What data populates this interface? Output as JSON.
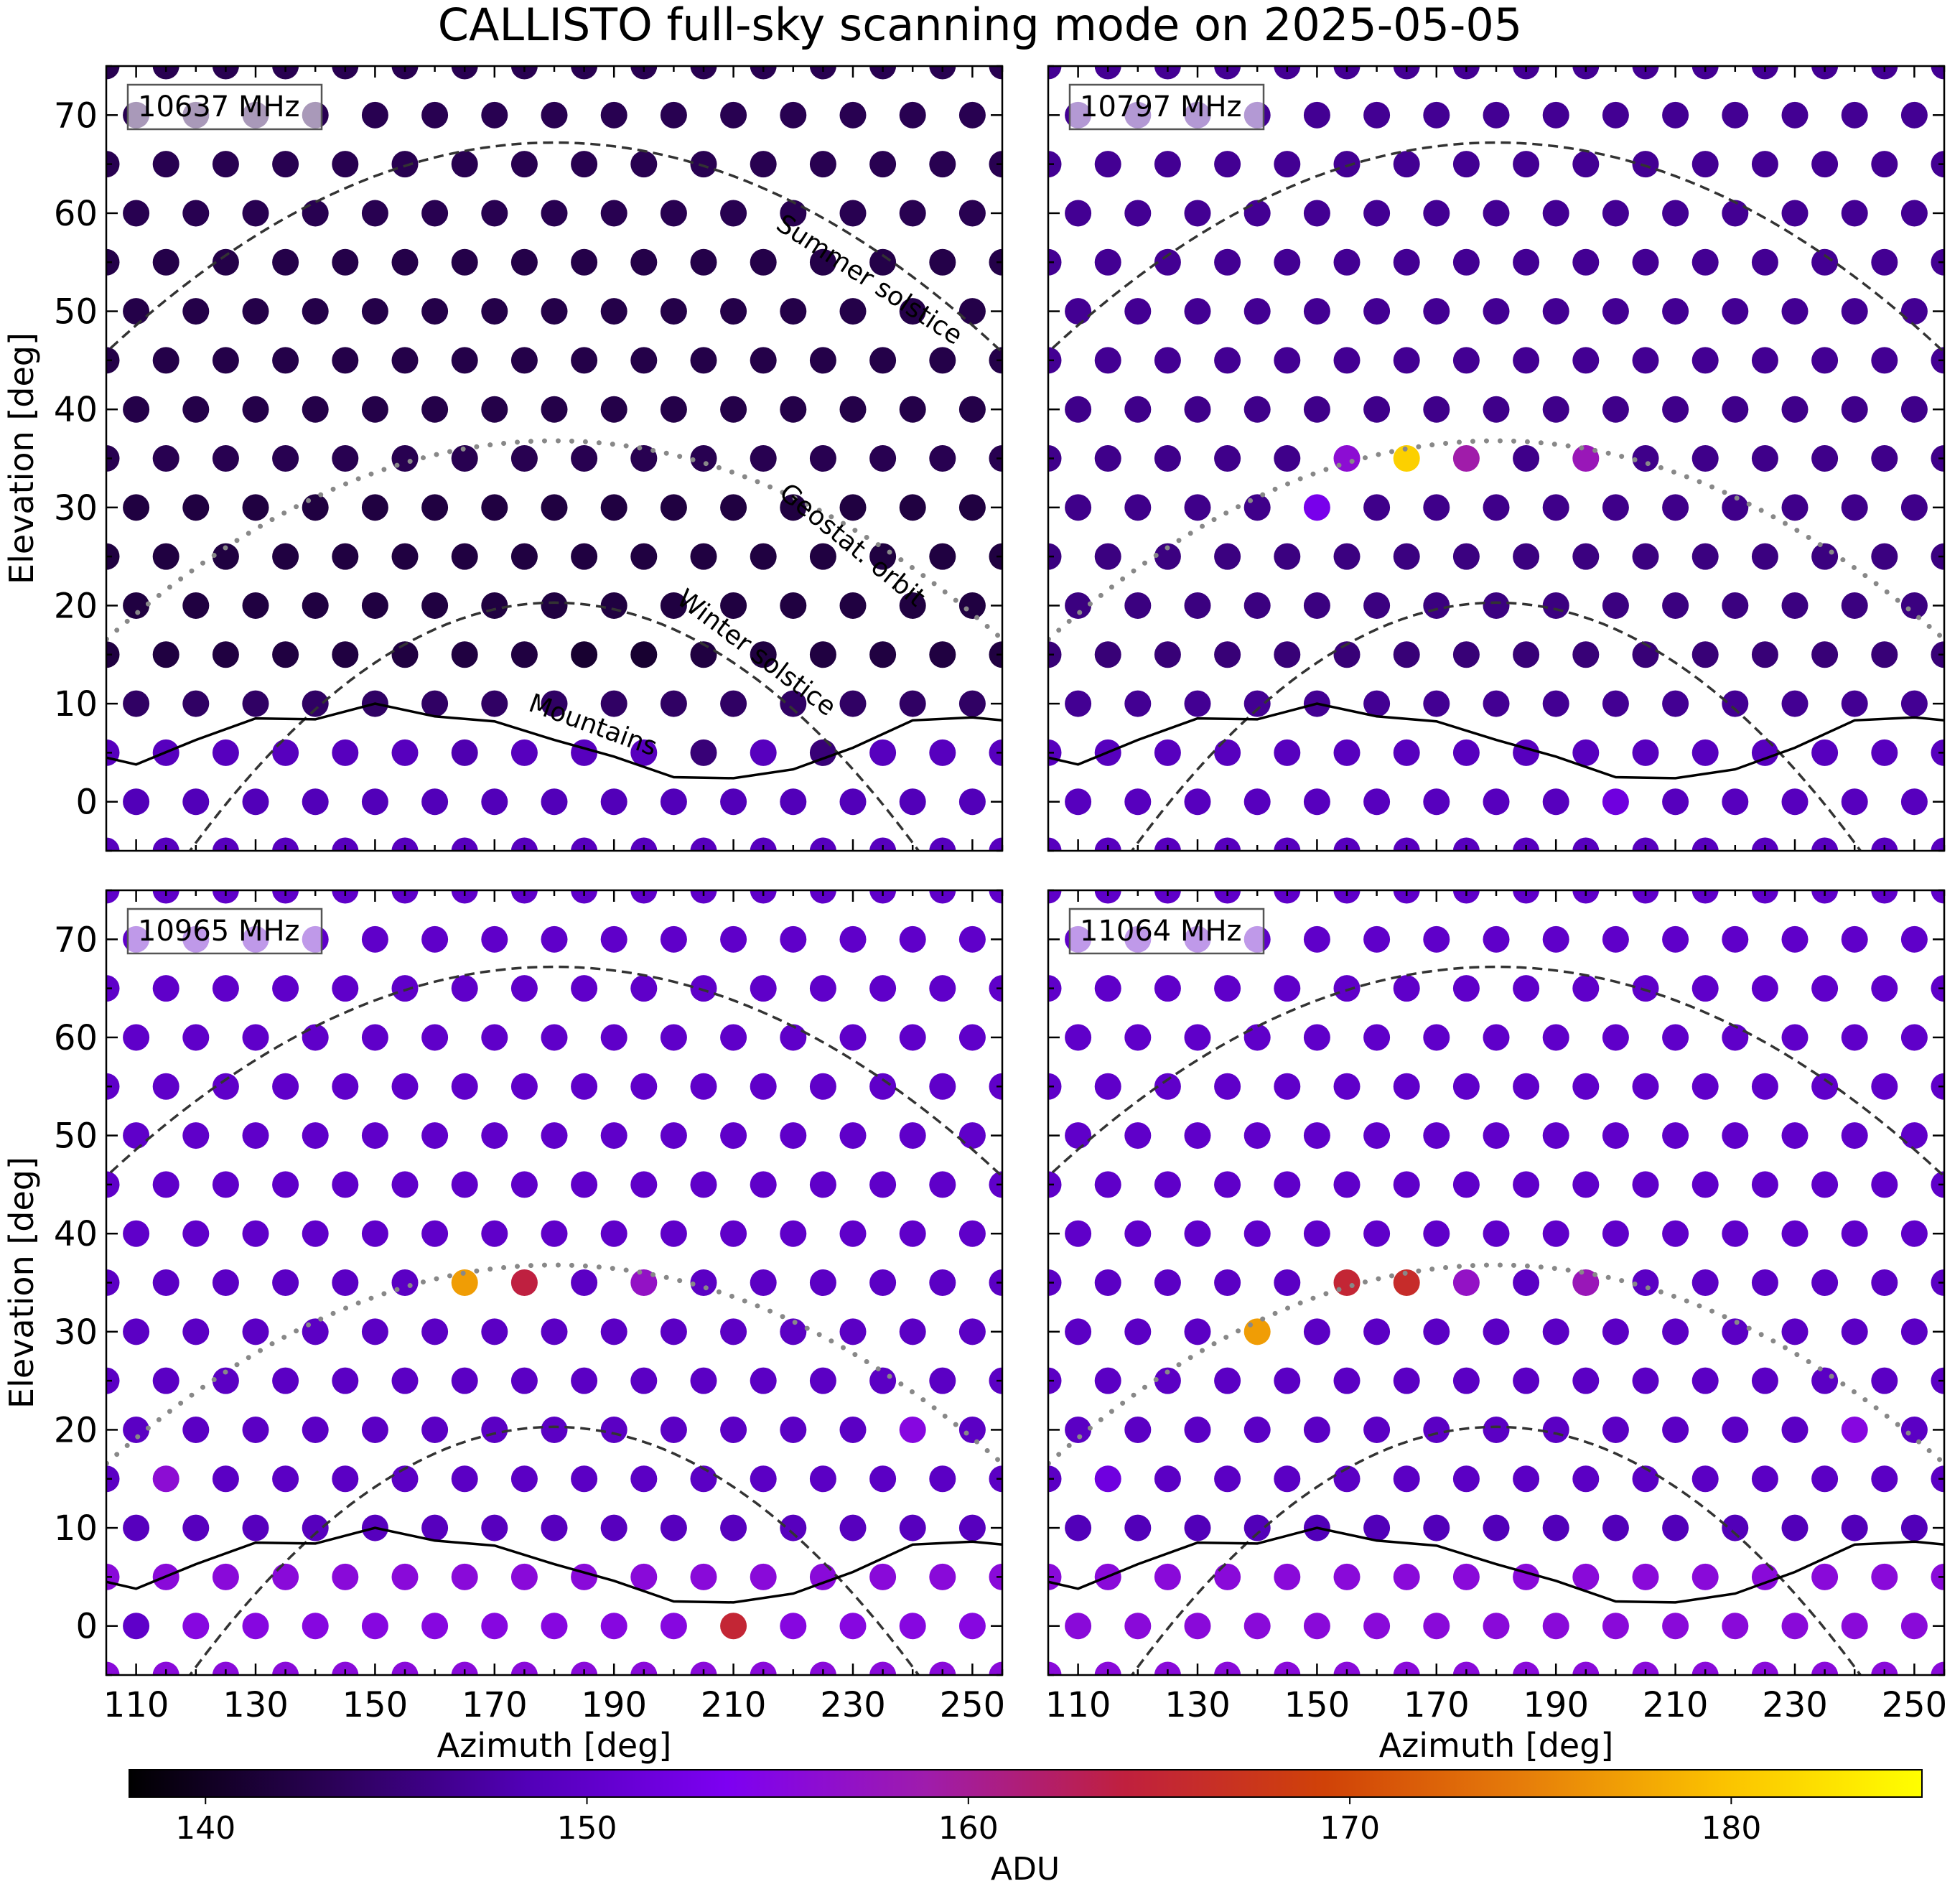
{
  "title": "CALLISTO full-sky scanning mode on 2025-05-05",
  "colorbar": {
    "label": "ADU",
    "ticks": [
      140,
      150,
      160,
      170,
      180
    ],
    "range": [
      138,
      185
    ],
    "colormap": "gnuplot",
    "stops": [
      "#000000",
      "#2a0155",
      "#5200b8",
      "#7d00f2",
      "#9f1cac",
      "#c0203e",
      "#d04208",
      "#e67d0a",
      "#fbc200",
      "#ffff00"
    ]
  },
  "chart_data": [
    {
      "type": "scatter",
      "label": "10637 MHz",
      "xlabel": "",
      "ylabel": "Elevation [deg]",
      "xlim": [
        105,
        255
      ],
      "ylim": [
        -5,
        75
      ],
      "xticks": [
        110,
        130,
        150,
        170,
        190,
        210,
        230,
        250
      ],
      "yticks": [
        0,
        10,
        20,
        30,
        40,
        50,
        60,
        70
      ],
      "base_by_row": {
        "-5": 149,
        "0": 148.5,
        "5": 149,
        "10": 144,
        "15": 142,
        "20": 142,
        "25": 142,
        "30": 142,
        "35": 143,
        "40": 142.5,
        "45": 142.5,
        "50": 142.5,
        "55": 142.5,
        "60": 143,
        "65": 143,
        "70": 143,
        "75": 143
      },
      "points": [
        {
          "az": 205,
          "el": 5,
          "adu": 145
        },
        {
          "az": 225,
          "el": 5,
          "adu": 145
        },
        {
          "az": 185,
          "el": 15,
          "adu": 141
        },
        {
          "az": 195,
          "el": 15,
          "adu": 141
        },
        {
          "az": 165,
          "el": 5,
          "adu": 148
        }
      ],
      "annotations": [
        "Summer solstice",
        "Geostat. orbit",
        "Winter solstice",
        "Mountains"
      ]
    },
    {
      "type": "scatter",
      "label": "10797 MHz",
      "xlabel": "",
      "ylabel": "",
      "xlim": [
        105,
        255
      ],
      "ylim": [
        -5,
        75
      ],
      "xticks": [
        110,
        130,
        150,
        170,
        190,
        210,
        230,
        250
      ],
      "yticks": [
        0,
        10,
        20,
        30,
        40,
        50,
        60,
        70
      ],
      "base_by_row": {
        "-5": 149,
        "0": 149,
        "5": 149,
        "10": 146.5,
        "15": 145,
        "20": 145.5,
        "25": 145.5,
        "30": 146,
        "35": 146,
        "40": 146,
        "45": 146.5,
        "50": 146.5,
        "55": 146.5,
        "60": 146.5,
        "65": 146.5,
        "70": 146.5,
        "75": 146.5
      },
      "points": [
        {
          "az": 155,
          "el": 35,
          "adu": 156
        },
        {
          "az": 165,
          "el": 35,
          "adu": 181
        },
        {
          "az": 175,
          "el": 35,
          "adu": 159
        },
        {
          "az": 195,
          "el": 35,
          "adu": 158
        },
        {
          "az": 150,
          "el": 30,
          "adu": 153
        },
        {
          "az": 200,
          "el": 0,
          "adu": 152
        }
      ],
      "annotations": []
    },
    {
      "type": "scatter",
      "label": "10965 MHz",
      "xlabel": "Azimuth [deg]",
      "ylabel": "Elevation [deg]",
      "xlim": [
        105,
        255
      ],
      "ylim": [
        -5,
        75
      ],
      "xticks": [
        110,
        130,
        150,
        170,
        190,
        210,
        230,
        250
      ],
      "yticks": [
        0,
        10,
        20,
        30,
        40,
        50,
        60,
        70
      ],
      "base_by_row": {
        "-5": 155.5,
        "0": 155,
        "5": 155.5,
        "10": 149,
        "15": 149.5,
        "20": 149.5,
        "25": 149.5,
        "30": 149.5,
        "35": 149.5,
        "40": 150,
        "45": 150,
        "50": 150,
        "55": 150,
        "60": 150,
        "65": 150,
        "70": 150,
        "75": 150
      },
      "points": [
        {
          "az": 165,
          "el": 35,
          "adu": 177
        },
        {
          "az": 175,
          "el": 35,
          "adu": 164
        },
        {
          "az": 195,
          "el": 35,
          "adu": 157
        },
        {
          "az": 135,
          "el": 30,
          "adu": 155
        },
        {
          "az": 115,
          "el": 15,
          "adu": 156
        },
        {
          "az": 240,
          "el": 20,
          "adu": 155
        },
        {
          "az": 210,
          "el": 0,
          "adu": 165
        },
        {
          "az": 110,
          "el": 0,
          "adu": 150
        }
      ],
      "annotations": []
    },
    {
      "type": "scatter",
      "label": "11064 MHz",
      "xlabel": "Azimuth [deg]",
      "ylabel": "",
      "xlim": [
        105,
        255
      ],
      "ylim": [
        -5,
        75
      ],
      "xticks": [
        110,
        130,
        150,
        170,
        190,
        210,
        230,
        250
      ],
      "yticks": [
        0,
        10,
        20,
        30,
        40,
        50,
        60,
        70
      ],
      "base_by_row": {
        "-5": 155.5,
        "0": 155.5,
        "5": 155.5,
        "10": 148.5,
        "15": 149.5,
        "20": 149.5,
        "25": 149.5,
        "30": 149.5,
        "35": 149.5,
        "40": 150,
        "45": 150,
        "50": 150,
        "55": 150,
        "60": 150,
        "65": 150,
        "70": 150,
        "75": 150
      },
      "points": [
        {
          "az": 155,
          "el": 35,
          "adu": 165
        },
        {
          "az": 165,
          "el": 35,
          "adu": 166
        },
        {
          "az": 175,
          "el": 35,
          "adu": 157
        },
        {
          "az": 195,
          "el": 35,
          "adu": 158
        },
        {
          "az": 140,
          "el": 30,
          "adu": 177
        },
        {
          "az": 115,
          "el": 15,
          "adu": 152
        },
        {
          "az": 240,
          "el": 20,
          "adu": 155
        }
      ],
      "annotations": []
    }
  ],
  "curves": {
    "summer_solstice": {
      "name": "Summer solstice",
      "peak_el": 67.2,
      "peak_az": 180,
      "k": 0.0038
    },
    "winter_solstice": {
      "name": "Winter solstice",
      "peak_el": 20.3,
      "peak_az": 180,
      "k": 0.0068
    },
    "geostat_orbit": {
      "name": "Geostat. orbit",
      "peak_el": 36.8,
      "peak_az": 180,
      "k": 0.0036
    },
    "mountains": {
      "name": "Mountains",
      "az": [
        105,
        110,
        120,
        130,
        140,
        150,
        160,
        170,
        180,
        190,
        200,
        210,
        220,
        230,
        240,
        250,
        255
      ],
      "el": [
        4.5,
        3.8,
        6.3,
        8.5,
        8.4,
        10.0,
        8.7,
        8.2,
        6.3,
        4.6,
        2.5,
        2.4,
        3.3,
        5.5,
        8.3,
        8.6,
        8.3
      ]
    }
  }
}
